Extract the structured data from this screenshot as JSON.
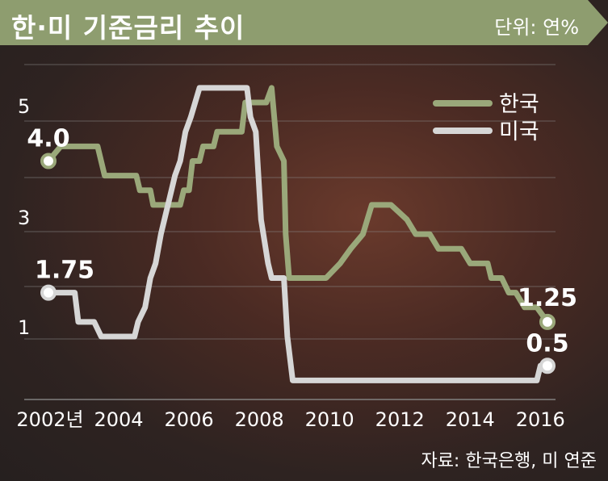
{
  "header": {
    "title": "한·미 기준금리 추이",
    "unit": "단위: 연%"
  },
  "source": "자료: 한국은행, 미 연준",
  "colors": {
    "title_bar": "#8e9d6f",
    "korea": "#9aa87a",
    "usa": "#d6d6d6",
    "grid": "#8a8a8a",
    "text": "#ffffff"
  },
  "chart_data": {
    "type": "line",
    "xlim": [
      2002,
      2016.6
    ],
    "ylim": [
      -1.0,
      6.0
    ],
    "x_ticks": [
      {
        "value": 2002,
        "label": "2002년"
      },
      {
        "value": 2004,
        "label": "2004"
      },
      {
        "value": 2006,
        "label": "2006"
      },
      {
        "value": 2008,
        "label": "2008"
      },
      {
        "value": 2010,
        "label": "2010"
      },
      {
        "value": 2012,
        "label": "2012"
      },
      {
        "value": 2014,
        "label": "2014"
      },
      {
        "value": 2016,
        "label": "2016"
      }
    ],
    "y_ticks": [
      {
        "value": 5,
        "label": "5"
      },
      {
        "value": 3,
        "label": "3"
      },
      {
        "value": 1,
        "label": "1"
      }
    ],
    "grid_values": [
      6.0,
      5.0,
      4.0,
      3.0,
      2.0,
      1.0,
      -1.0
    ],
    "legend": [
      "한국",
      "미국"
    ],
    "series": [
      {
        "name": "한국",
        "color": "#9aa87a",
        "points": [
          [
            2002.0,
            4.0
          ],
          [
            2002.35,
            4.25
          ],
          [
            2003.4,
            4.25
          ],
          [
            2003.6,
            3.75
          ],
          [
            2004.5,
            3.75
          ],
          [
            2004.6,
            3.5
          ],
          [
            2004.9,
            3.5
          ],
          [
            2004.98,
            3.25
          ],
          [
            2005.75,
            3.25
          ],
          [
            2005.85,
            3.5
          ],
          [
            2006.0,
            3.5
          ],
          [
            2006.1,
            4.0
          ],
          [
            2006.3,
            4.0
          ],
          [
            2006.4,
            4.25
          ],
          [
            2006.7,
            4.25
          ],
          [
            2006.8,
            4.5
          ],
          [
            2007.5,
            4.5
          ],
          [
            2007.6,
            5.0
          ],
          [
            2008.2,
            5.0
          ],
          [
            2008.35,
            5.25
          ],
          [
            2008.5,
            4.25
          ],
          [
            2008.7,
            4.0
          ],
          [
            2008.75,
            2.75
          ],
          [
            2008.85,
            2.0
          ],
          [
            2009.9,
            2.0
          ],
          [
            2010.3,
            2.25
          ],
          [
            2010.6,
            2.5
          ],
          [
            2010.95,
            2.75
          ],
          [
            2011.2,
            3.25
          ],
          [
            2011.75,
            3.25
          ],
          [
            2012.2,
            3.0
          ],
          [
            2012.45,
            2.75
          ],
          [
            2012.85,
            2.75
          ],
          [
            2013.1,
            2.5
          ],
          [
            2013.75,
            2.5
          ],
          [
            2014.0,
            2.25
          ],
          [
            2014.5,
            2.25
          ],
          [
            2014.6,
            2.0
          ],
          [
            2014.9,
            2.0
          ],
          [
            2015.1,
            1.75
          ],
          [
            2015.3,
            1.75
          ],
          [
            2015.55,
            1.5
          ],
          [
            2015.9,
            1.5
          ],
          [
            2016.2,
            1.25
          ]
        ]
      },
      {
        "name": "미국",
        "color": "#d6d6d6",
        "points": [
          [
            2002.0,
            1.75
          ],
          [
            2002.75,
            1.75
          ],
          [
            2002.85,
            1.25
          ],
          [
            2003.3,
            1.25
          ],
          [
            2003.5,
            1.0
          ],
          [
            2004.45,
            1.0
          ],
          [
            2004.55,
            1.25
          ],
          [
            2004.75,
            1.5
          ],
          [
            2004.9,
            2.0
          ],
          [
            2005.05,
            2.25
          ],
          [
            2005.2,
            2.75
          ],
          [
            2005.4,
            3.25
          ],
          [
            2005.6,
            3.75
          ],
          [
            2005.75,
            4.0
          ],
          [
            2005.9,
            4.5
          ],
          [
            2006.05,
            4.75
          ],
          [
            2006.3,
            5.25
          ],
          [
            2007.65,
            5.25
          ],
          [
            2007.75,
            4.75
          ],
          [
            2007.9,
            4.5
          ],
          [
            2008.05,
            3.0
          ],
          [
            2008.25,
            2.25
          ],
          [
            2008.35,
            2.0
          ],
          [
            2008.7,
            2.0
          ],
          [
            2008.8,
            1.0
          ],
          [
            2008.95,
            0.25
          ],
          [
            2015.9,
            0.25
          ],
          [
            2016.0,
            0.5
          ],
          [
            2016.2,
            0.5
          ]
        ]
      }
    ],
    "data_labels": [
      {
        "text": "4.0",
        "x": 2002.0,
        "y": 4.0,
        "series": "한국"
      },
      {
        "text": "1.75",
        "x": 2002.0,
        "y": 1.75,
        "series": "미국"
      },
      {
        "text": "1.25",
        "x": 2016.2,
        "y": 1.25,
        "series": "한국"
      },
      {
        "text": "0.5",
        "x": 2016.2,
        "y": 0.5,
        "series": "미국"
      }
    ]
  }
}
